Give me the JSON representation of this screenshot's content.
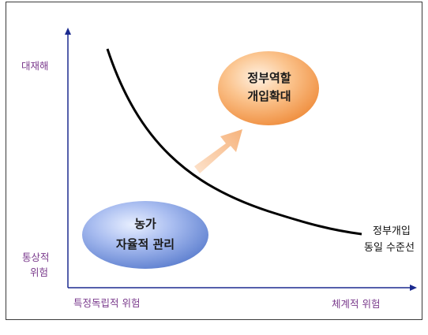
{
  "diagram": {
    "y_axis": {
      "top_label": "대재해",
      "bottom_label": [
        "통상적",
        "위험"
      ]
    },
    "x_axis": {
      "left_label": "특정독립적 위험",
      "right_label": "체계적 위험"
    },
    "nodes": {
      "farm": {
        "lines": [
          "농가",
          "자율적 관리"
        ]
      },
      "government": {
        "lines": [
          "정부역할",
          "개입확대"
        ]
      }
    },
    "curve_label": [
      "정부개입",
      "동일 수준선"
    ],
    "colors": {
      "axis": "#1b2a8f",
      "axis_text": "#7a3a8c",
      "blue_oval": "#6f8fd6",
      "orange_oval": "#f4a15a",
      "arrow": "#f8c8a0",
      "curve": "#000000"
    }
  }
}
